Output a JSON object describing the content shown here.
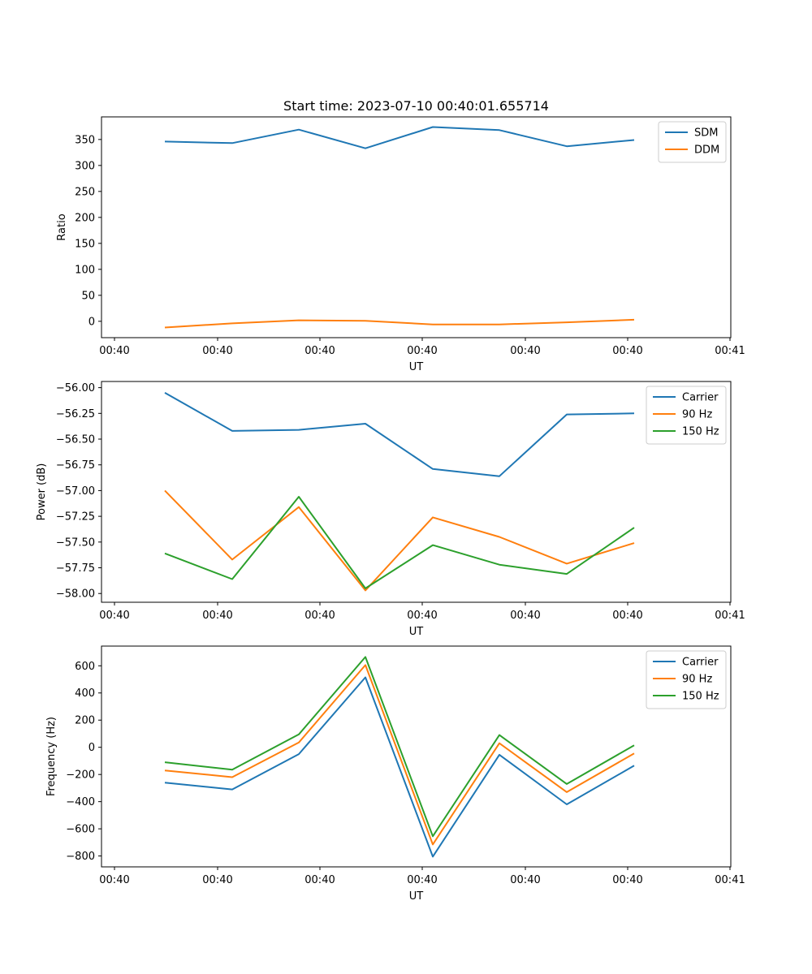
{
  "chart_data": [
    {
      "type": "line",
      "title": "Start time: 2023-07-10 00:40:01.655714",
      "xlabel": "UT",
      "ylabel": "Ratio",
      "x_tick_labels": [
        "00:40",
        "00:40",
        "00:40",
        "00:40",
        "00:40",
        "00:40",
        "00:40",
        "00:41"
      ],
      "y_ticks": [
        0,
        50,
        100,
        150,
        200,
        250,
        300,
        350
      ],
      "ylim": [
        -31.5,
        393.5
      ],
      "legend_position": "top-right",
      "series": [
        {
          "name": "SDM",
          "color": "#1f77b4",
          "values": [
            346,
            343,
            369,
            333,
            374,
            368,
            337,
            349
          ]
        },
        {
          "name": "DDM",
          "color": "#ff7f0e",
          "values": [
            -12,
            -4,
            2,
            1,
            -6,
            -6,
            -2,
            3
          ]
        }
      ]
    },
    {
      "type": "line",
      "title": "",
      "xlabel": "UT",
      "ylabel": "Power (dB)",
      "x_tick_labels": [
        "00:40",
        "00:40",
        "00:40",
        "00:40",
        "00:40",
        "00:40",
        "00:40",
        "00:41"
      ],
      "y_ticks": [
        -58.0,
        -57.75,
        -57.5,
        -57.25,
        -57.0,
        -56.75,
        -56.5,
        -56.25,
        -56.0
      ],
      "y_tick_labels": [
        "−58.00",
        "−57.75",
        "−57.50",
        "−57.25",
        "−57.00",
        "−56.75",
        "−56.50",
        "−56.25",
        "−56.00"
      ],
      "ylim": [
        -58.085,
        -55.94
      ],
      "legend_position": "top-right",
      "series": [
        {
          "name": "Carrier",
          "color": "#1f77b4",
          "values": [
            -56.05,
            -56.42,
            -56.41,
            -56.35,
            -56.79,
            -56.86,
            -56.26,
            -56.25
          ]
        },
        {
          "name": "90 Hz",
          "color": "#ff7f0e",
          "values": [
            -57.0,
            -57.67,
            -57.16,
            -57.97,
            -57.26,
            -57.45,
            -57.71,
            -57.51
          ]
        },
        {
          "name": "150 Hz",
          "color": "#2ca02c",
          "values": [
            -57.61,
            -57.86,
            -57.06,
            -57.95,
            -57.53,
            -57.72,
            -57.81,
            -57.36
          ]
        }
      ]
    },
    {
      "type": "line",
      "title": "",
      "xlabel": "UT",
      "ylabel": "Frequency (Hz)",
      "x_tick_labels": [
        "00:40",
        "00:40",
        "00:40",
        "00:40",
        "00:40",
        "00:40",
        "00:40",
        "00:41"
      ],
      "y_ticks": [
        -800,
        -600,
        -400,
        -200,
        0,
        200,
        400,
        600
      ],
      "y_tick_labels": [
        "−800",
        "−600",
        "−400",
        "−200",
        "0",
        "200",
        "400",
        "600"
      ],
      "ylim": [
        -880,
        745
      ],
      "legend_position": "top-right",
      "series": [
        {
          "name": "Carrier",
          "color": "#1f77b4",
          "values": [
            -260,
            -310,
            -50,
            515,
            -805,
            -55,
            -420,
            -135
          ]
        },
        {
          "name": "90 Hz",
          "color": "#ff7f0e",
          "values": [
            -170,
            -220,
            35,
            605,
            -715,
            30,
            -330,
            -45
          ]
        },
        {
          "name": "150 Hz",
          "color": "#2ca02c",
          "values": [
            -110,
            -165,
            95,
            665,
            -655,
            90,
            -270,
            15
          ]
        }
      ]
    }
  ]
}
